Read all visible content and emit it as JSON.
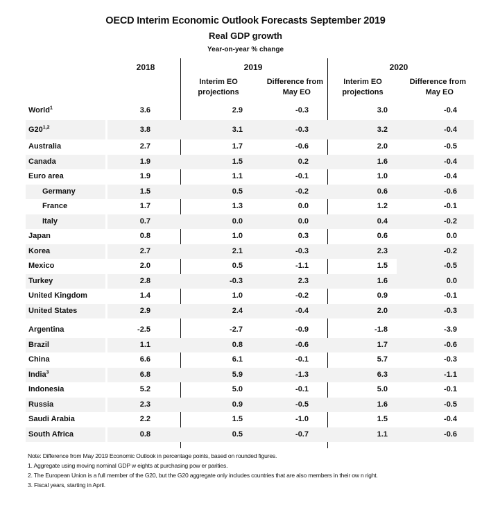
{
  "title": "OECD Interim Economic Outlook Forecasts September 2019",
  "subtitle": "Real GDP growth",
  "unit": "Year-on-year % change",
  "headers": {
    "y2018": "2018",
    "y2019": "2019",
    "y2020": "2020",
    "interim_line1": "Interim EO",
    "interim_line2": "projections",
    "diff_line1": "Difference from",
    "diff_line2": "May EO"
  },
  "rows": [
    {
      "name": "World",
      "sup": "1",
      "v2018": "3.6",
      "p2019": "2.9",
      "d2019": "-0.3",
      "p2020": "3.0",
      "d2020": "-0.4"
    },
    {
      "name": "G20",
      "sup": "1,2",
      "v2018": "3.8",
      "p2019": "3.1",
      "d2019": "-0.3",
      "p2020": "3.2",
      "d2020": "-0.4"
    },
    {
      "name": "Australia",
      "v2018": "2.7",
      "p2019": "1.7",
      "d2019": "-0.6",
      "p2020": "2.0",
      "d2020": "-0.5"
    },
    {
      "name": "Canada",
      "v2018": "1.9",
      "p2019": "1.5",
      "d2019": "0.2",
      "p2020": "1.6",
      "d2020": "-0.4"
    },
    {
      "name": "Euro area",
      "v2018": "1.9",
      "p2019": "1.1",
      "d2019": "-0.1",
      "p2020": "1.0",
      "d2020": "-0.4"
    },
    {
      "name": "Germany",
      "v2018": "1.5",
      "p2019": "0.5",
      "d2019": "-0.2",
      "p2020": "0.6",
      "d2020": "-0.6"
    },
    {
      "name": "France",
      "v2018": "1.7",
      "p2019": "1.3",
      "d2019": "0.0",
      "p2020": "1.2",
      "d2020": "-0.1"
    },
    {
      "name": "Italy",
      "v2018": "0.7",
      "p2019": "0.0",
      "d2019": "0.0",
      "p2020": "0.4",
      "d2020": "-0.2"
    },
    {
      "name": "Japan",
      "v2018": "0.8",
      "p2019": "1.0",
      "d2019": "0.3",
      "p2020": "0.6",
      "d2020": "0.0"
    },
    {
      "name": "Korea",
      "v2018": "2.7",
      "p2019": "2.1",
      "d2019": "-0.3",
      "p2020": "2.3",
      "d2020": "-0.2"
    },
    {
      "name": "Mexico",
      "v2018": "2.0",
      "p2019": "0.5",
      "d2019": "-1.1",
      "p2020": "1.5",
      "d2020": "-0.5"
    },
    {
      "name": "Turkey",
      "v2018": "2.8",
      "p2019": "-0.3",
      "d2019": "2.3",
      "p2020": "1.6",
      "d2020": "0.0"
    },
    {
      "name": "United Kingdom",
      "v2018": "1.4",
      "p2019": "1.0",
      "d2019": "-0.2",
      "p2020": "0.9",
      "d2020": "-0.1"
    },
    {
      "name": "United States",
      "v2018": "2.9",
      "p2019": "2.4",
      "d2019": "-0.4",
      "p2020": "2.0",
      "d2020": "-0.3"
    },
    {
      "name": "Argentina",
      "v2018": "-2.5",
      "p2019": "-2.7",
      "d2019": "-0.9",
      "p2020": "-1.8",
      "d2020": "-3.9"
    },
    {
      "name": "Brazil",
      "v2018": "1.1",
      "p2019": "0.8",
      "d2019": "-0.6",
      "p2020": "1.7",
      "d2020": "-0.6"
    },
    {
      "name": "China",
      "v2018": "6.6",
      "p2019": "6.1",
      "d2019": "-0.1",
      "p2020": "5.7",
      "d2020": "-0.3"
    },
    {
      "name": "India",
      "sup": "3",
      "v2018": "6.8",
      "p2019": "5.9",
      "d2019": "-1.3",
      "p2020": "6.3",
      "d2020": "-1.1"
    },
    {
      "name": "Indonesia",
      "v2018": "5.2",
      "p2019": "5.0",
      "d2019": "-0.1",
      "p2020": "5.0",
      "d2020": "-0.1"
    },
    {
      "name": "Russia",
      "v2018": "2.3",
      "p2019": "0.9",
      "d2019": "-0.5",
      "p2020": "1.6",
      "d2020": "-0.5"
    },
    {
      "name": "Saudi Arabia",
      "v2018": "2.2",
      "p2019": "1.5",
      "d2019": "-1.0",
      "p2020": "1.5",
      "d2020": "-0.4"
    },
    {
      "name": "South Africa",
      "v2018": "0.8",
      "p2019": "0.5",
      "d2019": "-0.7",
      "p2020": "1.1",
      "d2020": "-0.6"
    }
  ],
  "notes": [
    "Note: Difference from May 2019 Economic Outlook in percentage points, based on rounded figures.",
    "1. Aggregate using moving nominal GDP w eights at purchasing pow er parities.",
    "2. The European Union is a full member of the G20, but the G20 aggregate only includes countries that are also members in their ow n right.",
    "3. Fiscal years, starting in April."
  ]
}
